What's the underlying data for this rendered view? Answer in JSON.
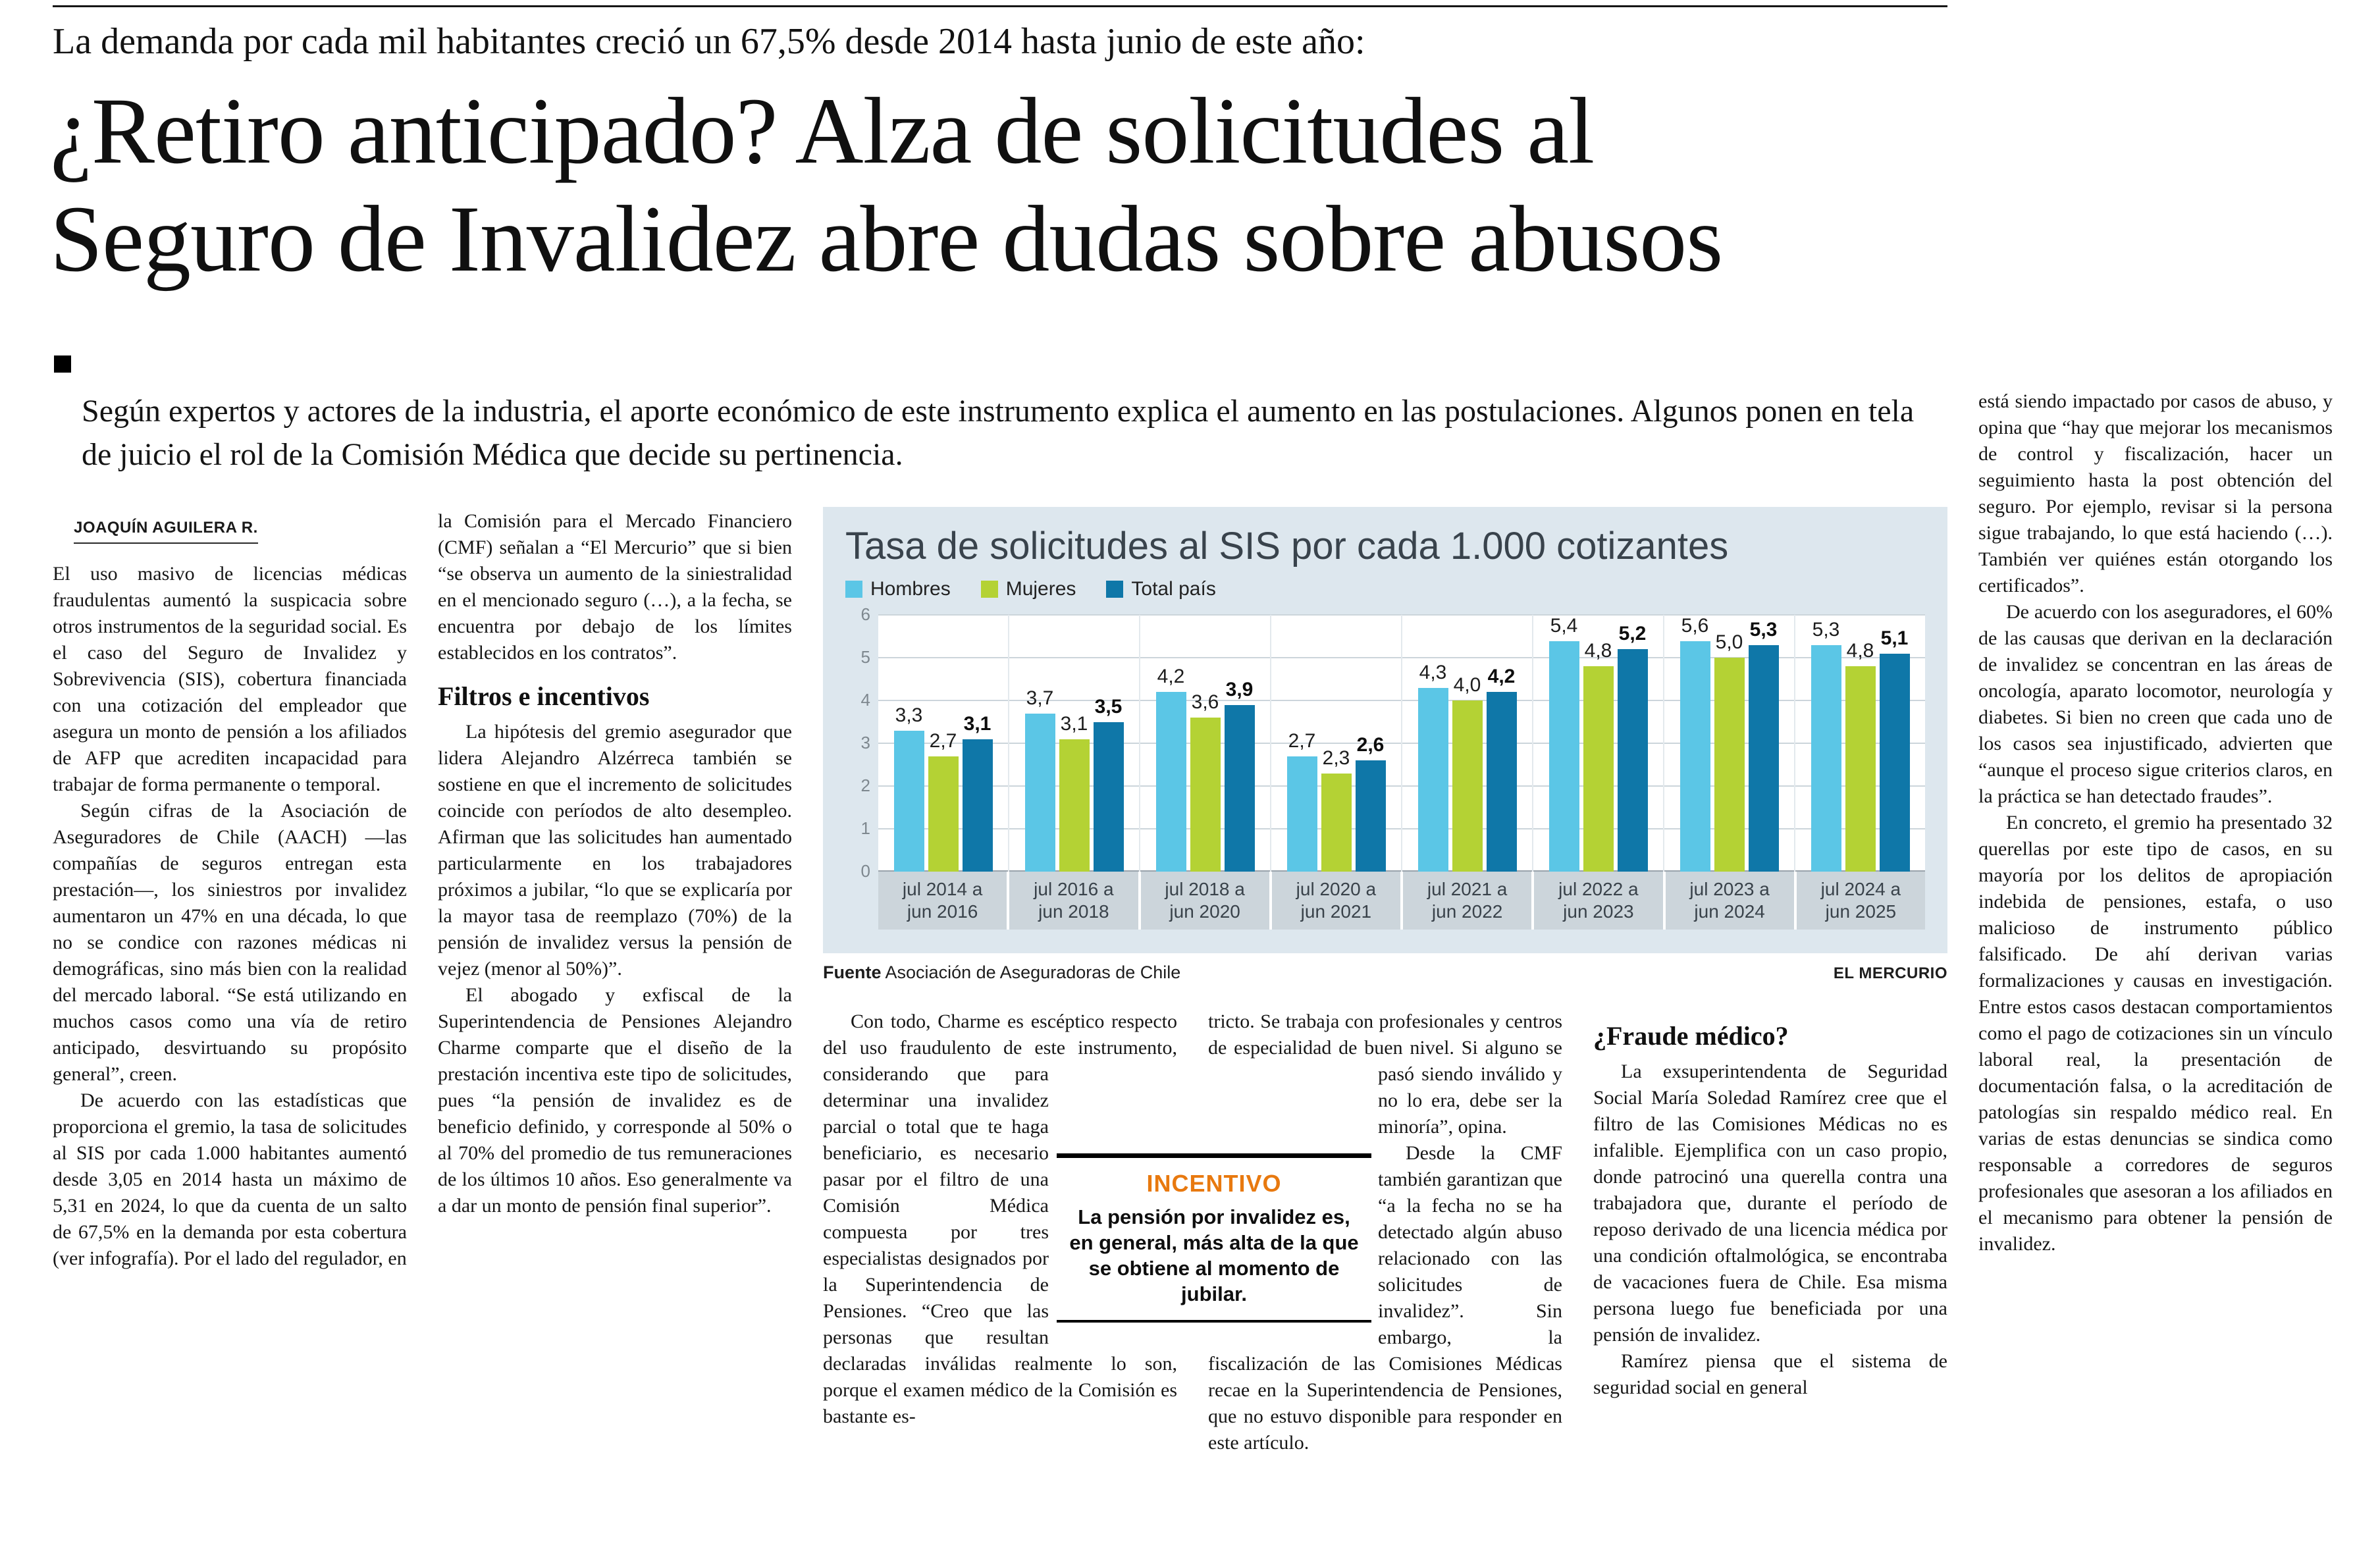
{
  "page": {
    "kicker": "La demanda por cada mil habitantes creció un 67,5% desde 2014 hasta junio de este año:",
    "headline_line1": "¿Retiro anticipado? Alza de solicitudes al",
    "headline_line2": "Seguro de Invalidez abre dudas sobre abusos",
    "deck": "Según expertos y actores de la industria, el aporte económico de este instrumento explica el aumento en las postulaciones. Algunos ponen en tela de juicio el rol de la Comisión Médica que decide su pertinencia.",
    "byline": "JOAQUÍN AGUILERA R."
  },
  "col1": {
    "p1": "El uso masivo de licencias médicas fraudulentas aumentó la suspicacia sobre otros instrumentos de la seguridad social. Es el caso del Seguro de Invalidez y Sobrevivencia (SIS), cobertura financiada con una cotización del empleador que asegura un monto de pensión a los afiliados de AFP que acrediten incapacidad para trabajar de forma permanente o temporal.",
    "p2": "Según cifras de la Asociación de Aseguradores de Chile (AACH) —las compañías de seguros entregan esta prestación—, los siniestros por invalidez aumentaron un 47% en una década, lo que no se condice con razones médicas ni demográficas, sino más bien con la realidad del mercado laboral. “Se está utilizando en muchos casos como una vía de retiro anticipado, desvirtuando su propósito general”, creen.",
    "p3": "De acuerdo con las estadísticas que proporciona el gremio, la tasa de solicitudes al SIS por cada 1.000 habitantes aumentó desde 3,05 en 2014 hasta un máximo de 5,31 en 2024, lo que da cuenta de un salto de 67,5% en la demanda por esta cobertura (ver infografía). Por el lado del regulador, en"
  },
  "col2": {
    "p1": "la Comisión para el Mercado Financiero (CMF) señalan a “El Mercurio” que si bien “se observa un aumento de la siniestralidad en el mencionado seguro (…), a la fecha, se encuentra por debajo de los límites establecidos en los contratos”.",
    "subhead": "Filtros e incentivos",
    "p2": "La hipótesis del gremio asegurador que lidera Alejandro Alzérreca también se sostiene en que el incremento de solicitudes coincide con períodos de alto desempleo. Afirman que las solicitudes han aumentado particularmente en los trabajadores próximos a jubilar, “lo que se explicaría por la mayor tasa de reemplazo (70%) de la pensión de invalidez versus la pensión de vejez (menor al 50%)”.",
    "p3": "El abogado y exfiscal de la Superintendencia de Pensiones Alejandro Charme comparte que el diseño de la prestación incentiva este tipo de solicitudes, pues “la pensión de invalidez es de beneficio definido, y corresponde al 50% o al 70% del promedio de tus remuneraciones de los últimos 10 años. Eso generalmente va a dar un monto de pensión final superior”."
  },
  "col3": {
    "seg1": "Con todo, Charme es escéptico respecto del uso fraudulento de este instrumento,",
    "seg2": "considerando que para determinar una invalidez parcial o total que te haga beneficiario, es necesario pasar por el filtro de una Comisión Médica compuesta",
    "seg3": "por tres especialistas designados por la Superintendencia de Pensiones. “Creo que las personas que resultan declaradas inválidas realmente lo son, porque el examen médico de la Comisión es bastante es-"
  },
  "incentive_box": {
    "title": "INCENTIVO",
    "text": "La pensión por invalidez es, en general, más alta de la que se obtiene al momento de jubilar."
  },
  "col4": {
    "seg1": "tricto. Se trabaja con profesionales y centros de especialidad de buen nivel. Si alguno se pasó",
    "seg2": "siendo inválido y no lo era, debe ser la minoría”, opina.",
    "p2": "Desde la CMF también garantizan que “a la fecha no se ha detectado algún abuso relacionado con las solicitudes de invalidez”. Sin embargo, la fiscalización de las Comisiones Médicas recae en la Superintendencia de Pensiones, que no estuvo disponible para responder en este artículo."
  },
  "col5": {
    "subhead": "¿Fraude médico?",
    "p1": "La exsuperintendenta de Seguridad Social María Soledad Ramírez cree que el filtro de las Comisiones Médicas no es infalible. Ejemplifica con un caso propio, donde patrocinó una querella contra una trabajadora que, durante el período de reposo derivado de una licencia médica por una condición oftalmológica, se encontraba de vacaciones fuera de Chile. Esa misma persona luego fue beneficiada por una pensión de invalidez.",
    "p2": "Ramírez piensa que el sistema de seguridad social en general"
  },
  "col6": {
    "p1": "está siendo impactado por casos de abuso, y opina que “hay que mejorar los mecanismos de control y fiscalización, hacer un seguimiento hasta la post obtención del seguro. Por ejemplo, revisar si la persona sigue trabajando, lo que está haciendo (…). También ver quiénes están otorgando los certificados”.",
    "p2": "De acuerdo con los aseguradores, el 60% de las causas que derivan en la declaración de invalidez se concentran en las áreas de oncología, aparato locomotor, neurología y diabetes. Si bien no creen que cada uno de los casos sea injustificado, advierten que “aunque el proceso sigue criterios claros, en la práctica se han detectado fraudes”.",
    "p3": "En concreto, el gremio ha presentado 32 querellas por este tipo de casos, en su mayoría por los delitos de apropiación indebida de pensiones, estafa, o uso malicioso de instrumento público falsificado. De ahí derivan varias formalizaciones y causas en investigación. Entre estos casos destacan comportamientos como el pago de cotizaciones sin un vínculo laboral real, la presentación de documentación falsa, o la acreditación de patologías sin respaldo médico real. En varias de estas denuncias se sindica como responsable a corredores de seguros profesionales que asesoran a los afiliados en el mecanismo para obtener la pensión de invalidez."
  },
  "chart": {
    "source_label": "Fuente",
    "source": "Asociación de Aseguradoras de Chile",
    "credit": "EL MERCURIO"
  },
  "chart_data": {
    "type": "bar",
    "title": "Tasa de solicitudes al SIS por cada 1.000 cotizantes",
    "categories": [
      "jul 2014 a jun 2016",
      "jul 2016 a jun 2018",
      "jul 2018 a jun 2020",
      "jul 2020 a jun 2021",
      "jul 2021 a jun 2022",
      "jul 2022 a jun 2023",
      "jul 2023 a jun 2024",
      "jul 2024 a jun 2025"
    ],
    "series": [
      {
        "name": "Hombres",
        "color": "#5bc6e6",
        "values": [
          3.3,
          3.7,
          4.2,
          2.7,
          4.3,
          5.4,
          5.6,
          5.3
        ]
      },
      {
        "name": "Mujeres",
        "color": "#b4d234",
        "values": [
          2.7,
          3.1,
          3.6,
          2.3,
          4.0,
          4.8,
          5.0,
          4.8
        ]
      },
      {
        "name": "Total país",
        "color": "#0f77a8",
        "values": [
          3.1,
          3.5,
          3.9,
          2.6,
          4.2,
          5.2,
          5.3,
          5.1
        ]
      }
    ],
    "ylim": [
      0,
      6
    ],
    "yticks": [
      0,
      1,
      2,
      3,
      4,
      5,
      6
    ],
    "grid": true,
    "legend_position": "top",
    "value_labels": true,
    "decimal_separator": ","
  }
}
